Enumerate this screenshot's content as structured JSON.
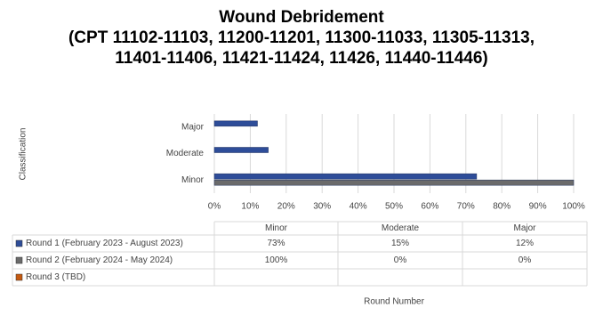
{
  "chart_data": {
    "type": "bar",
    "orientation": "horizontal",
    "title": "Wound Debridement",
    "subtitle": "(CPT 11102-11103, 11200-11201, 11300-11033, 11305-11313, 11401-11406, 11421-11424, 11426, 11440-11446)",
    "y_label": "Classification",
    "x_label": "Round Number",
    "categories": [
      "Minor",
      "Moderate",
      "Major"
    ],
    "series": [
      {
        "name": "Round 1 (February 2023 - August 2023)",
        "color": "#2e4d99",
        "values": [
          73,
          15,
          12
        ],
        "value_labels": [
          "73%",
          "15%",
          "12%"
        ]
      },
      {
        "name": "Round 2 (February 2024 - May 2024)",
        "color": "#6b6b6b",
        "values": [
          100,
          0,
          0
        ],
        "value_labels": [
          "100%",
          "0%",
          "0%"
        ]
      },
      {
        "name": "Round 3 (TBD)",
        "color": "#c55a11",
        "values": [
          null,
          null,
          null
        ]
      }
    ],
    "xlim": [
      0,
      100
    ],
    "xticks": [
      {
        "value": 0,
        "label": "0%"
      },
      {
        "value": 10,
        "label": "10%"
      },
      {
        "value": 20,
        "label": "20%"
      },
      {
        "value": 30,
        "label": "30%"
      },
      {
        "value": 40,
        "label": "40%"
      },
      {
        "value": 50,
        "label": "50%"
      },
      {
        "value": 60,
        "label": "60%"
      },
      {
        "value": 70,
        "label": "70%"
      },
      {
        "value": 80,
        "label": "80%"
      },
      {
        "value": 90,
        "label": "90%"
      },
      {
        "value": 100,
        "label": "100%"
      }
    ],
    "grid": true
  }
}
